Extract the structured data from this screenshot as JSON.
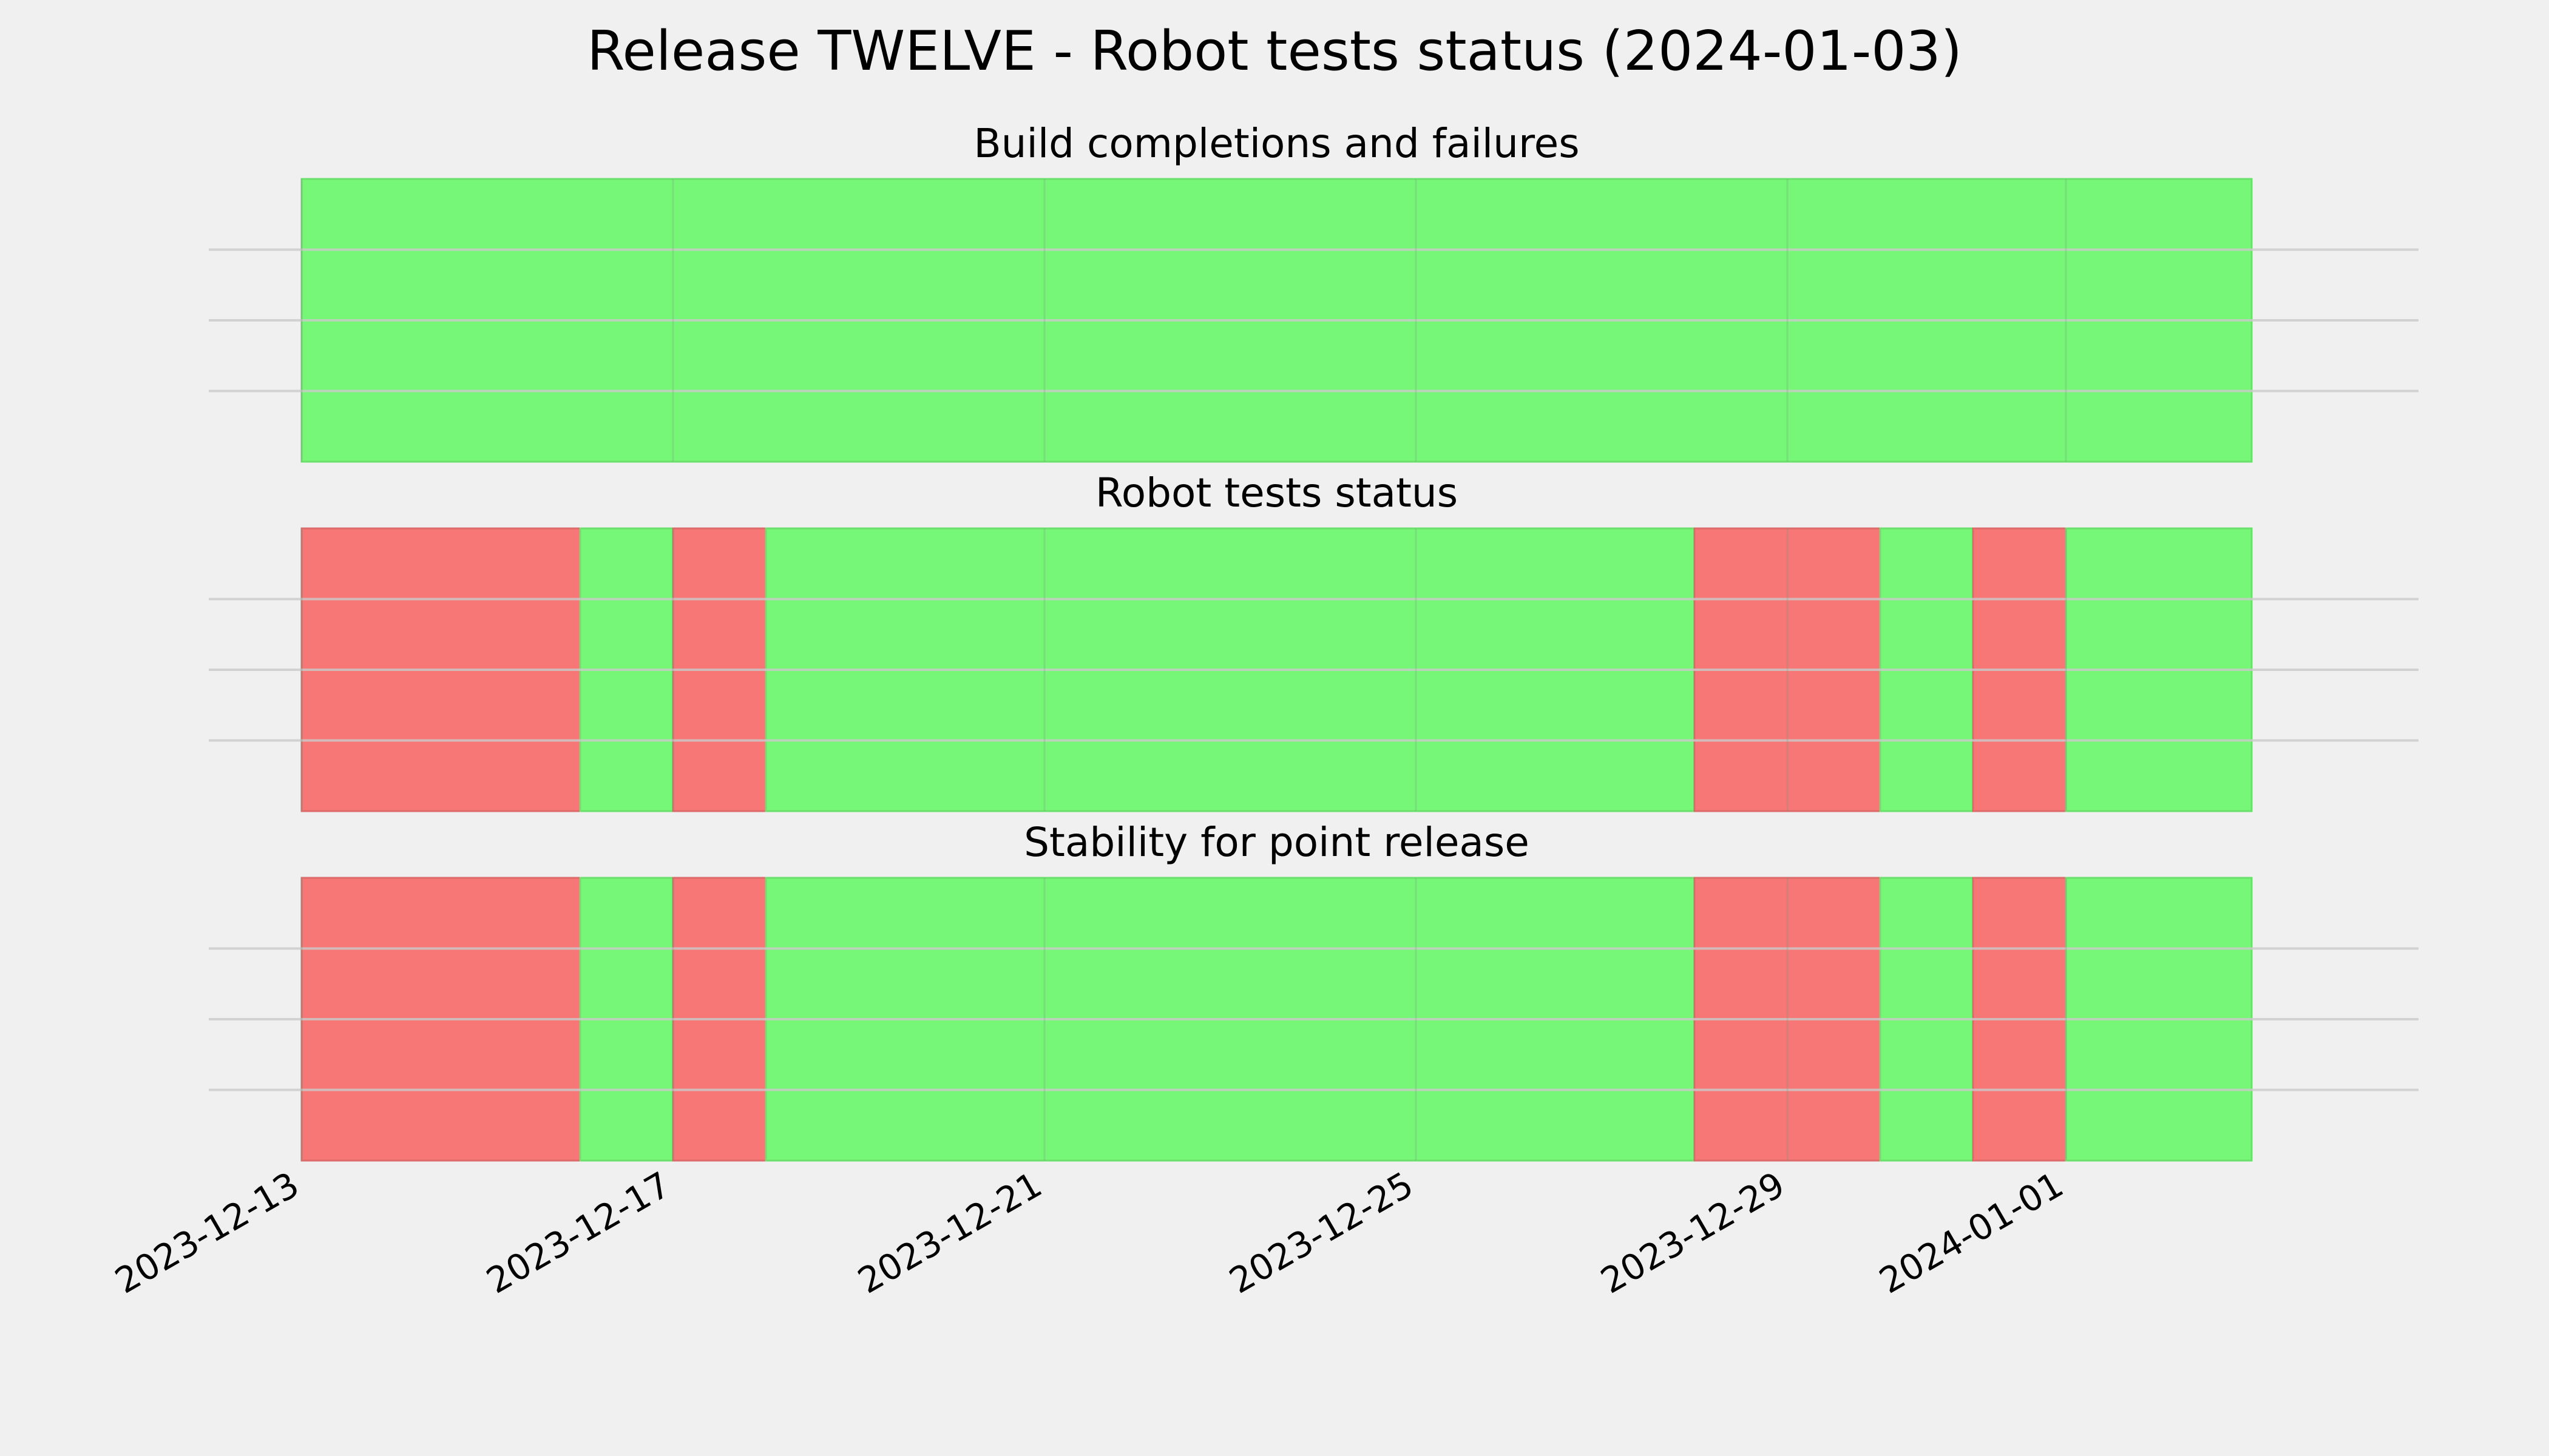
{
  "chart_data": {
    "type": "timeline",
    "title": "Release TWELVE - Robot tests status (2024-01-03)",
    "x_range": [
      "2023-12-13",
      "2024-01-03"
    ],
    "x_ticks": [
      "2023-12-13",
      "2023-12-17",
      "2023-12-21",
      "2023-12-25",
      "2023-12-29",
      "2024-01-01"
    ],
    "colors": {
      "pass": "#77f777",
      "fail": "#f77777",
      "grid": "#cbcbcb",
      "background": "#f0f0f0"
    },
    "grid": true,
    "panels": [
      {
        "title": "Build completions and failures",
        "segments": [
          {
            "start": "2023-12-13",
            "end": "2024-01-03",
            "status": "pass"
          }
        ]
      },
      {
        "title": "Robot tests status",
        "segments": [
          {
            "start": "2023-12-13",
            "end": "2023-12-16",
            "status": "fail"
          },
          {
            "start": "2023-12-16",
            "end": "2023-12-17",
            "status": "pass"
          },
          {
            "start": "2023-12-17",
            "end": "2023-12-18",
            "status": "fail"
          },
          {
            "start": "2023-12-18",
            "end": "2023-12-28",
            "status": "pass"
          },
          {
            "start": "2023-12-28",
            "end": "2023-12-30",
            "status": "fail"
          },
          {
            "start": "2023-12-30",
            "end": "2023-12-31",
            "status": "pass"
          },
          {
            "start": "2023-12-31",
            "end": "2024-01-01",
            "status": "fail"
          },
          {
            "start": "2024-01-01",
            "end": "2024-01-03",
            "status": "pass"
          }
        ]
      },
      {
        "title": "Stability for point release",
        "segments": [
          {
            "start": "2023-12-13",
            "end": "2023-12-16",
            "status": "fail"
          },
          {
            "start": "2023-12-16",
            "end": "2023-12-17",
            "status": "pass"
          },
          {
            "start": "2023-12-17",
            "end": "2023-12-18",
            "status": "fail"
          },
          {
            "start": "2023-12-18",
            "end": "2023-12-28",
            "status": "pass"
          },
          {
            "start": "2023-12-28",
            "end": "2023-12-30",
            "status": "fail"
          },
          {
            "start": "2023-12-30",
            "end": "2023-12-31",
            "status": "pass"
          },
          {
            "start": "2023-12-31",
            "end": "2024-01-01",
            "status": "fail"
          },
          {
            "start": "2024-01-01",
            "end": "2024-01-03",
            "status": "pass"
          }
        ]
      }
    ]
  }
}
